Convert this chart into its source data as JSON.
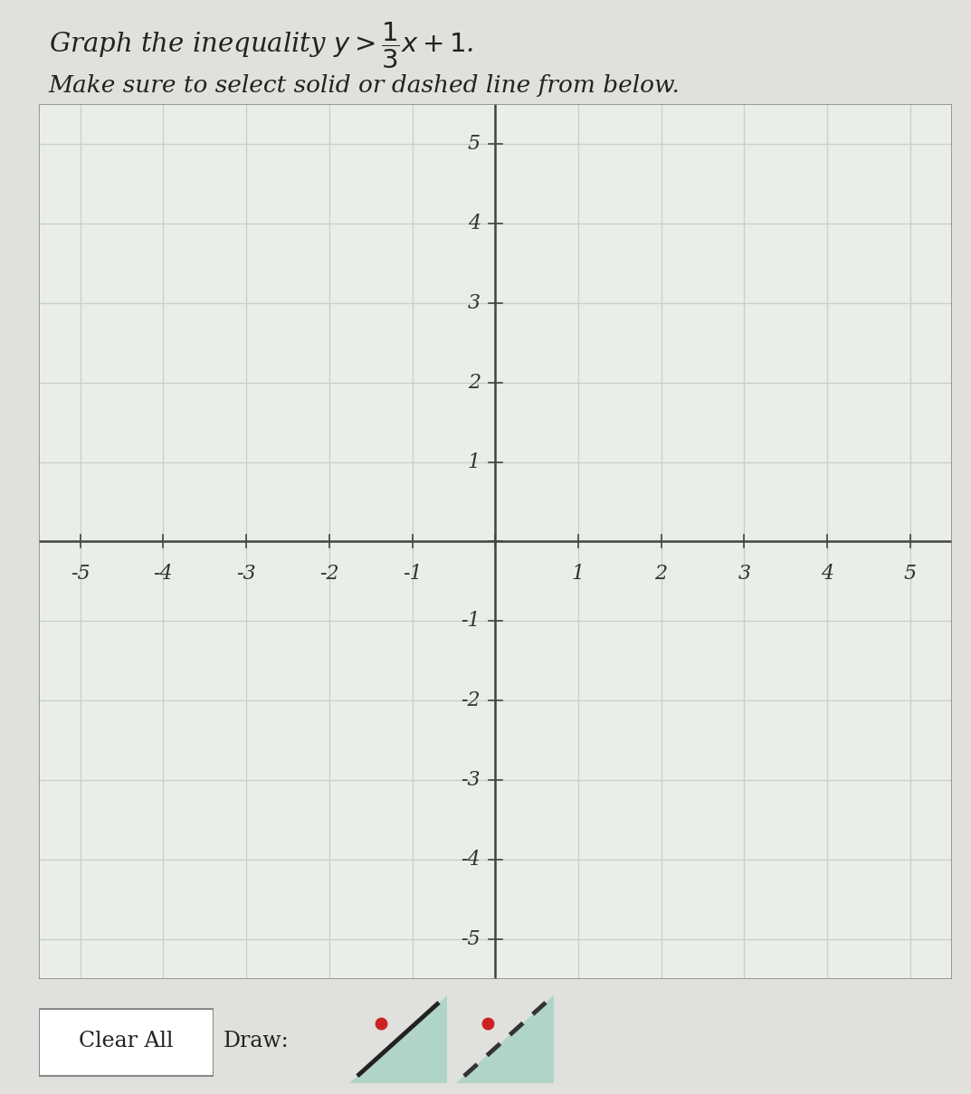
{
  "title_line1_plain": "Graph the inequality ",
  "title_line1_math": "$y > \\dfrac{1}{3}x + 1$.",
  "title_line2": "Make sure to select solid or dashed line from below.",
  "xlim": [
    -5.5,
    5.5
  ],
  "ylim": [
    -5.5,
    5.5
  ],
  "xticks": [
    -5,
    -4,
    -3,
    -2,
    -1,
    1,
    2,
    3,
    4,
    5
  ],
  "yticks": [
    -5,
    -4,
    -3,
    -2,
    -1,
    1,
    2,
    3,
    4,
    5
  ],
  "slope": 0.3333333333333333,
  "intercept": 1,
  "grid_color": "#c8cec8",
  "axis_color": "#444444",
  "bg_color": "#e0e0dc",
  "plot_bg_color": "#eaeee8",
  "tick_label_color": "#333333",
  "title_color": "#222222",
  "button_text": "Clear All",
  "draw_text": "Draw:",
  "icon1_bg": "#7ab8a8",
  "icon2_bg": "#7ab8a8",
  "dot_color": "#cc2222"
}
